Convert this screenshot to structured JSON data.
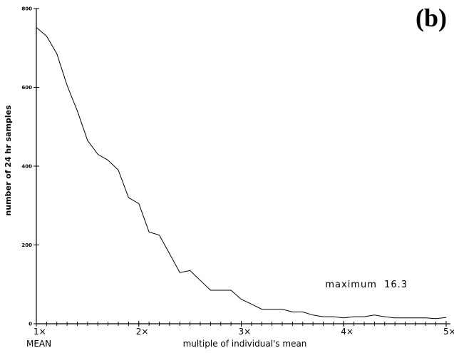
{
  "panel_label": "(b)",
  "chart_data": {
    "type": "line",
    "xlabel": "multiple of individual's mean",
    "ylabel": "number of 24 hr samples",
    "xlim": [
      1,
      5
    ],
    "ylim": [
      0,
      800
    ],
    "x_ticks": [
      {
        "value": 1,
        "label": "1×"
      },
      {
        "value": 2,
        "label": "2×"
      },
      {
        "value": 3,
        "label": "3×"
      },
      {
        "value": 4,
        "label": "4×"
      },
      {
        "value": 5,
        "label": "5×"
      }
    ],
    "x_sublabel": {
      "value": 1,
      "label": "MEAN"
    },
    "y_ticks": [
      {
        "value": 0,
        "label": "0"
      },
      {
        "value": 200,
        "label": "200"
      },
      {
        "value": 400,
        "label": "400"
      },
      {
        "value": 600,
        "label": "600"
      },
      {
        "value": 800,
        "label": "800"
      }
    ],
    "annotation": "maximum  16.3",
    "grid": false,
    "series": [
      {
        "x": [
          1.0,
          1.1,
          1.2,
          1.3,
          1.4,
          1.5,
          1.6,
          1.7,
          1.8,
          1.9,
          2.0,
          2.1,
          2.2,
          2.3,
          2.4,
          2.5,
          2.6,
          2.7,
          2.8,
          2.9,
          3.0,
          3.1,
          3.2,
          3.3,
          3.4,
          3.5,
          3.6,
          3.7,
          3.8,
          3.9,
          4.0,
          4.1,
          4.2,
          4.3,
          4.4,
          4.5,
          4.6,
          4.7,
          4.8,
          4.9,
          5.0
        ],
        "y": [
          752,
          730,
          685,
          605,
          540,
          465,
          430,
          415,
          390,
          320,
          305,
          233,
          225,
          178,
          130,
          135,
          110,
          85,
          85,
          85,
          62,
          50,
          37,
          37,
          37,
          30,
          30,
          22,
          18,
          18,
          15,
          18,
          18,
          22,
          18,
          15,
          15,
          15,
          15,
          13,
          16
        ]
      }
    ]
  }
}
